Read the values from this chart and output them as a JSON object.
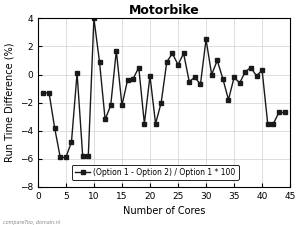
{
  "title": "Motorbike",
  "xlabel": "Number of Cores",
  "ylabel": "Run Time Difference (%)",
  "legend_label": "(Option 1 - Option 2) / Option 1 * 100",
  "xlim": [
    0,
    45
  ],
  "ylim": [
    -8,
    4
  ],
  "yticks": [
    -8,
    -6,
    -4,
    -2,
    0,
    2,
    4
  ],
  "xticks": [
    0,
    5,
    10,
    15,
    20,
    25,
    30,
    35,
    40,
    45
  ],
  "x": [
    1,
    2,
    3,
    4,
    5,
    6,
    7,
    8,
    9,
    10,
    11,
    12,
    13,
    14,
    15,
    16,
    17,
    18,
    19,
    20,
    21,
    22,
    23,
    24,
    25,
    26,
    27,
    28,
    29,
    30,
    31,
    32,
    33,
    34,
    35,
    36,
    37,
    38,
    39,
    40,
    41,
    42,
    43,
    44
  ],
  "y": [
    -1.3,
    -1.3,
    -3.8,
    -5.9,
    -5.9,
    -4.8,
    0.1,
    -5.8,
    -5.8,
    4.0,
    0.9,
    -3.2,
    -2.2,
    1.7,
    -2.2,
    -0.4,
    -0.3,
    0.5,
    -3.5,
    -0.1,
    -3.5,
    -2.0,
    0.9,
    1.5,
    0.7,
    1.5,
    -0.5,
    -0.2,
    -0.7,
    2.5,
    0.0,
    1.0,
    -0.3,
    -1.8,
    -0.2,
    -0.6,
    0.2,
    0.5,
    -0.1,
    0.3,
    -3.5,
    -3.5,
    -2.7,
    -2.7
  ],
  "line_color": "#1a1a1a",
  "marker": "s",
  "marker_size": 2.5,
  "line_width": 1.0,
  "grid": true,
  "grid_color": "#d0d0d0",
  "bg_color": "#ffffff",
  "title_fontsize": 9,
  "label_fontsize": 7,
  "tick_fontsize": 6.5,
  "legend_fontsize": 5.5,
  "watermark": "compareToo, domain.nl"
}
